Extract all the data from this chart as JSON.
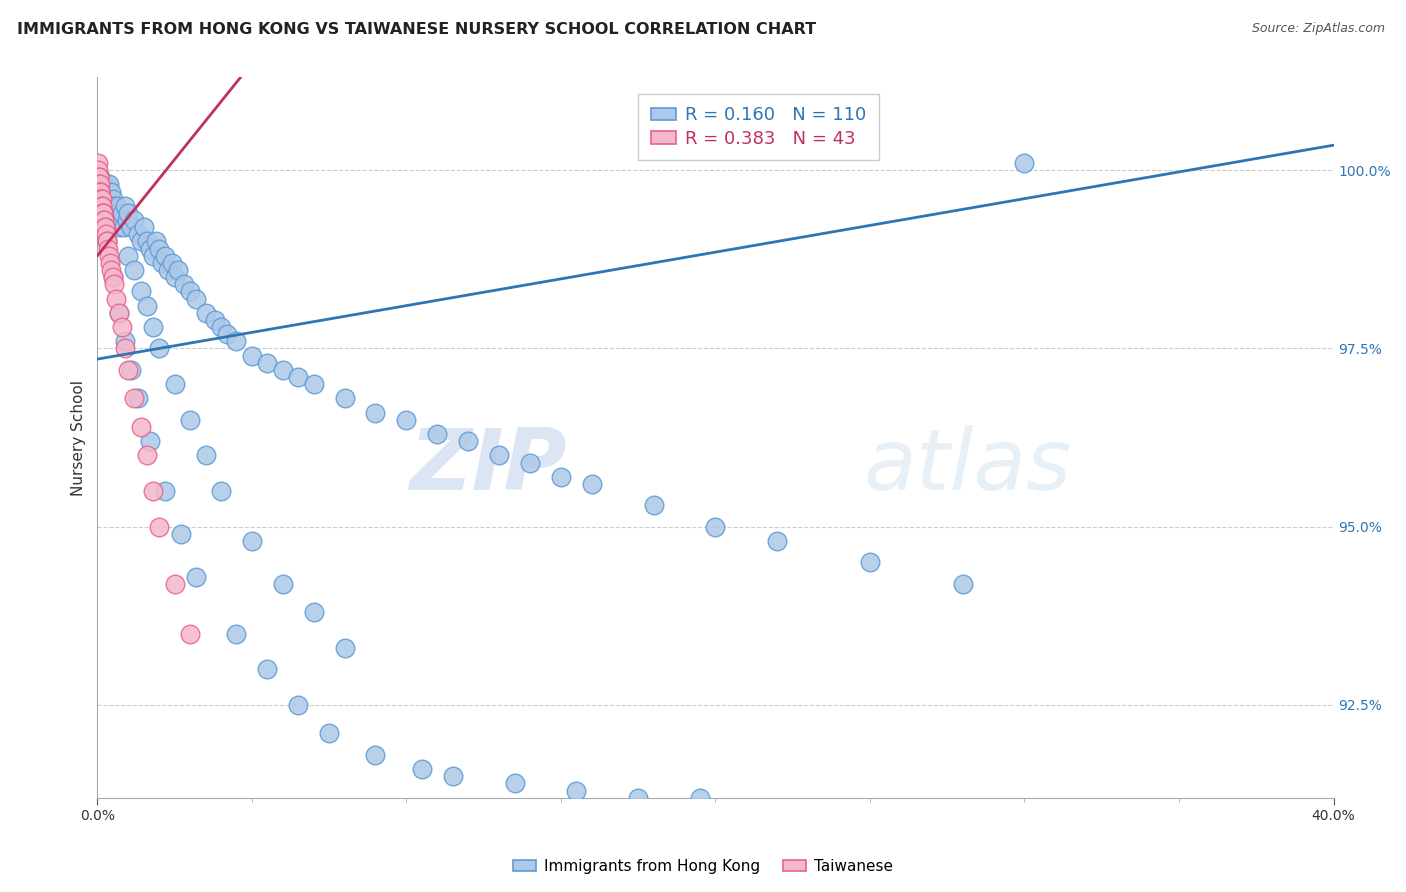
{
  "title": "IMMIGRANTS FROM HONG KONG VS TAIWANESE NURSERY SCHOOL CORRELATION CHART",
  "source": "Source: ZipAtlas.com",
  "ylabel": "Nursery School",
  "ylabel_tick_values": [
    92.5,
    95.0,
    97.5,
    100.0
  ],
  "xmin": 0.0,
  "xmax": 40.0,
  "ymin": 91.2,
  "ymax": 101.3,
  "legend_hk_R": 0.16,
  "legend_hk_N": 110,
  "legend_tw_R": 0.383,
  "legend_tw_N": 43,
  "hk_color": "#adc8e8",
  "hk_edge": "#5b9bd5",
  "tw_color": "#f4b8cc",
  "tw_edge": "#e8618c",
  "trend_hk_color": "#2e75b6",
  "trend_tw_color": "#c0325a",
  "trend_hk_x0": 0.0,
  "trend_hk_y0": 97.35,
  "trend_hk_x1": 40.0,
  "trend_hk_y1": 100.35,
  "trend_tw_x0": 0.0,
  "trend_tw_y0": 98.8,
  "trend_tw_x1": 5.0,
  "trend_tw_y1": 101.5,
  "hk_x": [
    0.05,
    0.08,
    0.1,
    0.12,
    0.15,
    0.18,
    0.2,
    0.22,
    0.25,
    0.28,
    0.3,
    0.32,
    0.35,
    0.38,
    0.4,
    0.42,
    0.45,
    0.48,
    0.5,
    0.55,
    0.58,
    0.6,
    0.65,
    0.7,
    0.75,
    0.8,
    0.85,
    0.9,
    0.95,
    1.0,
    1.1,
    1.2,
    1.3,
    1.4,
    1.5,
    1.6,
    1.7,
    1.8,
    1.9,
    2.0,
    2.1,
    2.2,
    2.3,
    2.4,
    2.5,
    2.6,
    2.8,
    3.0,
    3.2,
    3.5,
    3.8,
    4.0,
    4.2,
    4.5,
    5.0,
    5.5,
    6.0,
    6.5,
    7.0,
    8.0,
    9.0,
    10.0,
    11.0,
    12.0,
    13.0,
    14.0,
    15.0,
    16.0,
    18.0,
    20.0,
    22.0,
    25.0,
    28.0,
    30.0,
    1.0,
    1.2,
    1.4,
    1.6,
    1.8,
    2.0,
    2.5,
    3.0,
    3.5,
    4.0,
    5.0,
    6.0,
    7.0,
    8.0,
    0.3,
    0.5,
    0.7,
    0.9,
    1.1,
    1.3,
    1.7,
    2.2,
    2.7,
    3.2,
    4.5,
    5.5,
    6.5,
    7.5,
    9.0,
    10.5,
    11.5,
    13.5,
    15.5,
    17.5,
    19.5
  ],
  "hk_y": [
    99.8,
    99.9,
    99.7,
    99.6,
    99.8,
    99.5,
    99.7,
    99.4,
    99.6,
    99.8,
    99.5,
    99.7,
    99.6,
    99.8,
    99.5,
    99.4,
    99.7,
    99.3,
    99.6,
    99.5,
    99.3,
    99.4,
    99.5,
    99.2,
    99.3,
    99.4,
    99.2,
    99.5,
    99.3,
    99.4,
    99.2,
    99.3,
    99.1,
    99.0,
    99.2,
    99.0,
    98.9,
    98.8,
    99.0,
    98.9,
    98.7,
    98.8,
    98.6,
    98.7,
    98.5,
    98.6,
    98.4,
    98.3,
    98.2,
    98.0,
    97.9,
    97.8,
    97.7,
    97.6,
    97.4,
    97.3,
    97.2,
    97.1,
    97.0,
    96.8,
    96.6,
    96.5,
    96.3,
    96.2,
    96.0,
    95.9,
    95.7,
    95.6,
    95.3,
    95.0,
    94.8,
    94.5,
    94.2,
    100.1,
    98.8,
    98.6,
    98.3,
    98.1,
    97.8,
    97.5,
    97.0,
    96.5,
    96.0,
    95.5,
    94.8,
    94.2,
    93.8,
    93.3,
    99.0,
    98.5,
    98.0,
    97.6,
    97.2,
    96.8,
    96.2,
    95.5,
    94.9,
    94.3,
    93.5,
    93.0,
    92.5,
    92.1,
    91.8,
    91.6,
    91.5,
    91.4,
    91.3,
    91.2,
    91.2
  ],
  "tw_x": [
    0.02,
    0.03,
    0.04,
    0.05,
    0.06,
    0.07,
    0.08,
    0.09,
    0.1,
    0.11,
    0.12,
    0.13,
    0.14,
    0.15,
    0.16,
    0.17,
    0.18,
    0.19,
    0.2,
    0.22,
    0.24,
    0.26,
    0.28,
    0.3,
    0.32,
    0.35,
    0.38,
    0.4,
    0.45,
    0.5,
    0.55,
    0.6,
    0.7,
    0.8,
    0.9,
    1.0,
    1.2,
    1.4,
    1.6,
    1.8,
    2.0,
    2.5,
    3.0
  ],
  "tw_y": [
    100.1,
    100.0,
    99.9,
    99.9,
    99.8,
    99.8,
    99.7,
    99.7,
    99.7,
    99.6,
    99.6,
    99.5,
    99.6,
    99.5,
    99.5,
    99.4,
    99.4,
    99.4,
    99.3,
    99.3,
    99.2,
    99.2,
    99.1,
    99.0,
    99.0,
    98.9,
    98.8,
    98.7,
    98.6,
    98.5,
    98.4,
    98.2,
    98.0,
    97.8,
    97.5,
    97.2,
    96.8,
    96.4,
    96.0,
    95.5,
    95.0,
    94.2,
    93.5
  ],
  "watermark_zip": "ZIP",
  "watermark_atlas": "atlas",
  "marker_size": 180
}
